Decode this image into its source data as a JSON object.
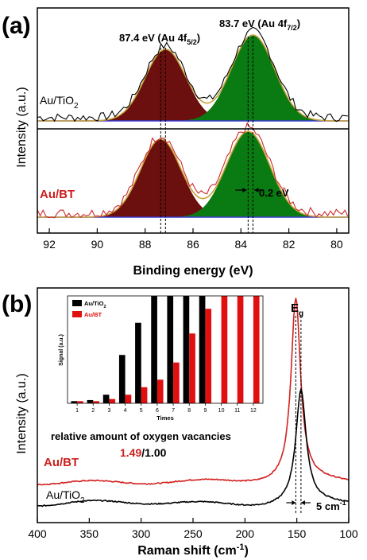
{
  "chart_data": [
    {
      "type": "line",
      "panel_label": "(a)",
      "xlabel": "Binding energy (eV)",
      "ylabel": "Intensity (a.u.)",
      "xlim": [
        92.5,
        79.5
      ],
      "x_ticks": [
        "92",
        "90",
        "88",
        "86",
        "84",
        "82",
        "80"
      ],
      "x_tick_values": [
        92,
        90,
        88,
        86,
        84,
        82,
        80
      ],
      "x_reversed": true,
      "grid": false,
      "annotations": [
        {
          "text": "87.4 eV (Au 4f",
          "sub": "5/2",
          "close": ")",
          "x": 87.4
        },
        {
          "text": "83.7 eV (Au 4f",
          "sub": "7/2",
          "close": ")",
          "x": 83.7
        },
        {
          "text": "0.2 eV"
        }
      ],
      "series": [
        {
          "name": "Au/TiO2",
          "label_main": "Au/TiO",
          "label_sub": "2",
          "label_color": "#000000",
          "line_color": "#000000",
          "peaks": [
            {
              "center": 87.15,
              "amplitude": 1.0,
              "sigma": 0.85,
              "fill": "#6b0f0f"
            },
            {
              "center": 83.5,
              "amplitude": 1.2,
              "sigma": 0.9,
              "fill": "#0a7a12"
            }
          ],
          "peak_marker_x": [
            87.15,
            83.5
          ]
        },
        {
          "name": "Au/BT",
          "label_main": "Au/BT",
          "label_sub": "",
          "label_color": "#cc1e1e",
          "line_color": "#cc2a2a",
          "peaks": [
            {
              "center": 87.35,
              "amplitude": 1.0,
              "sigma": 0.85,
              "fill": "#6b0f0f"
            },
            {
              "center": 83.7,
              "amplitude": 1.1,
              "sigma": 0.9,
              "fill": "#0a7a12"
            }
          ],
          "peak_marker_x": [
            87.35,
            83.7
          ],
          "shift_eV": 0.2
        }
      ]
    },
    {
      "type": "line",
      "panel_label": "(b)",
      "xlabel": "Raman shift (cm",
      "xlabel_sup": "-1",
      "xlabel_close": ")",
      "ylabel": "Intensity (a.u.)",
      "xlim": [
        400,
        100
      ],
      "x_ticks": [
        "400",
        "350",
        "300",
        "250",
        "200",
        "150",
        "100"
      ],
      "x_tick_values": [
        400,
        350,
        300,
        250,
        200,
        150,
        100
      ],
      "x_reversed": true,
      "grid": false,
      "peak_label": "E",
      "peak_label_sub": "g",
      "shift_label": "5 cm",
      "shift_label_sup": "-1",
      "vacancy_text": "relative amount of oxygen vacancies",
      "ratio_red": "1.49",
      "ratio_sep": "/",
      "ratio_black": "1.00",
      "series": [
        {
          "name": "Au/BT",
          "label": "Au/BT",
          "label_color": "#cc1e1e",
          "line_color": "#d42020",
          "peak_x": 151,
          "baseline": 0.18,
          "peak_height": 1.0,
          "width": 5.5
        },
        {
          "name": "Au/TiO2",
          "label_main": "Au/TiO",
          "label_sub": "2",
          "label_color": "#000000",
          "line_color": "#000000",
          "peak_x": 146,
          "baseline": 0.02,
          "peak_height": 0.62,
          "width": 6
        }
      ]
    },
    {
      "type": "bar",
      "inset_of": "(b)",
      "xlabel": "Times",
      "ylabel": "Signal (a.u.)",
      "categories": [
        "1",
        "2",
        "3",
        "4",
        "5",
        "6",
        "7",
        "8",
        "9",
        "10",
        "11",
        "12"
      ],
      "ylim": [
        0,
        1
      ],
      "series": [
        {
          "name": "Au/TiO2",
          "legend_main": "Au/TiO",
          "legend_sub": "2",
          "color": "#000000",
          "values": [
            0.02,
            0.03,
            0.08,
            0.45,
            0.75,
            1.0,
            1.0,
            1.0,
            1.0,
            null,
            null,
            null
          ]
        },
        {
          "name": "Au/BT",
          "legend_main": "Au/BT",
          "legend_sub": "",
          "color": "#e01010",
          "values": [
            0.02,
            0.02,
            0.04,
            0.08,
            0.15,
            0.22,
            0.38,
            0.65,
            0.88,
            1.0,
            1.0,
            1.0
          ]
        }
      ]
    }
  ]
}
